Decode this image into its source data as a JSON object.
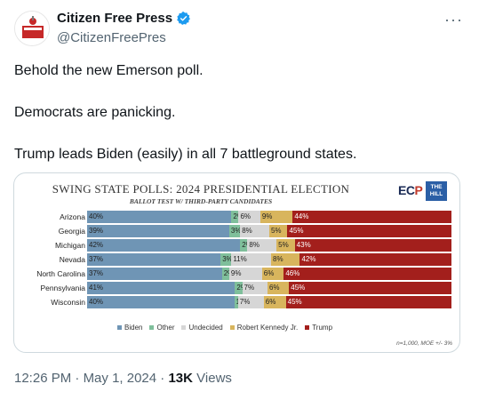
{
  "author": {
    "display_name": "Citizen Free Press",
    "handle": "@CitizenFreePres"
  },
  "more_glyph": "···",
  "tweet": {
    "line1": "Behold the new Emerson poll.",
    "line2": "Democrats are panicking.",
    "line3": "Trump leads Biden (easily) in all 7 battleground states."
  },
  "chart_data": {
    "type": "bar",
    "title": "SWING STATE POLLS: 2024 PRESIDENTIAL ELECTION",
    "subtitle": "BALLOT TEST W/ THIRD-PARTY CANDIDATES",
    "categories": [
      "Arizona",
      "Georgia",
      "Michigan",
      "Nevada",
      "North Carolina",
      "Pennsylvania",
      "Wisconsin"
    ],
    "series": [
      {
        "name": "Biden",
        "color": "#6f95b5",
        "values": [
          40,
          39,
          42,
          37,
          37,
          41,
          40
        ],
        "labels": [
          "40%",
          "39%",
          "42%",
          "37%",
          "37%",
          "41%",
          "40%"
        ]
      },
      {
        "name": "Other",
        "color": "#7fbf9b",
        "values": [
          2,
          3,
          2,
          3,
          2,
          2,
          1
        ],
        "labels": [
          "2%",
          "3%",
          "2%",
          "3%",
          "2%",
          "2%",
          "1%"
        ]
      },
      {
        "name": "Undecided",
        "color": "#d6d6d6",
        "values": [
          6,
          8,
          8,
          11,
          9,
          7,
          7
        ],
        "labels": [
          "6%",
          "8%",
          "8%",
          "11%",
          "9%",
          "7%",
          "7%"
        ]
      },
      {
        "name": "Robert Kennedy Jr.",
        "color": "#d8b55d",
        "values": [
          9,
          5,
          5,
          8,
          6,
          6,
          6
        ],
        "labels": [
          "9%",
          "5%",
          "5%",
          "8%",
          "6%",
          "6%",
          "6%"
        ]
      },
      {
        "name": "Trump",
        "color": "#a31f1c",
        "values": [
          44,
          45,
          43,
          42,
          46,
          45,
          45
        ],
        "labels": [
          "44%",
          "45%",
          "43%",
          "42%",
          "46%",
          "45%",
          "45%"
        ]
      }
    ],
    "legend_position": "bottom",
    "footnote": "n=1,000, MOE +/- 3%"
  },
  "logos": {
    "ecp": "EC",
    "ecp_p": "P",
    "hill": "THE HILL"
  },
  "meta": {
    "time": "12:26 PM",
    "separator": " · ",
    "date": "May 1, 2024",
    "views_count": "13K",
    "views_label": " Views"
  }
}
